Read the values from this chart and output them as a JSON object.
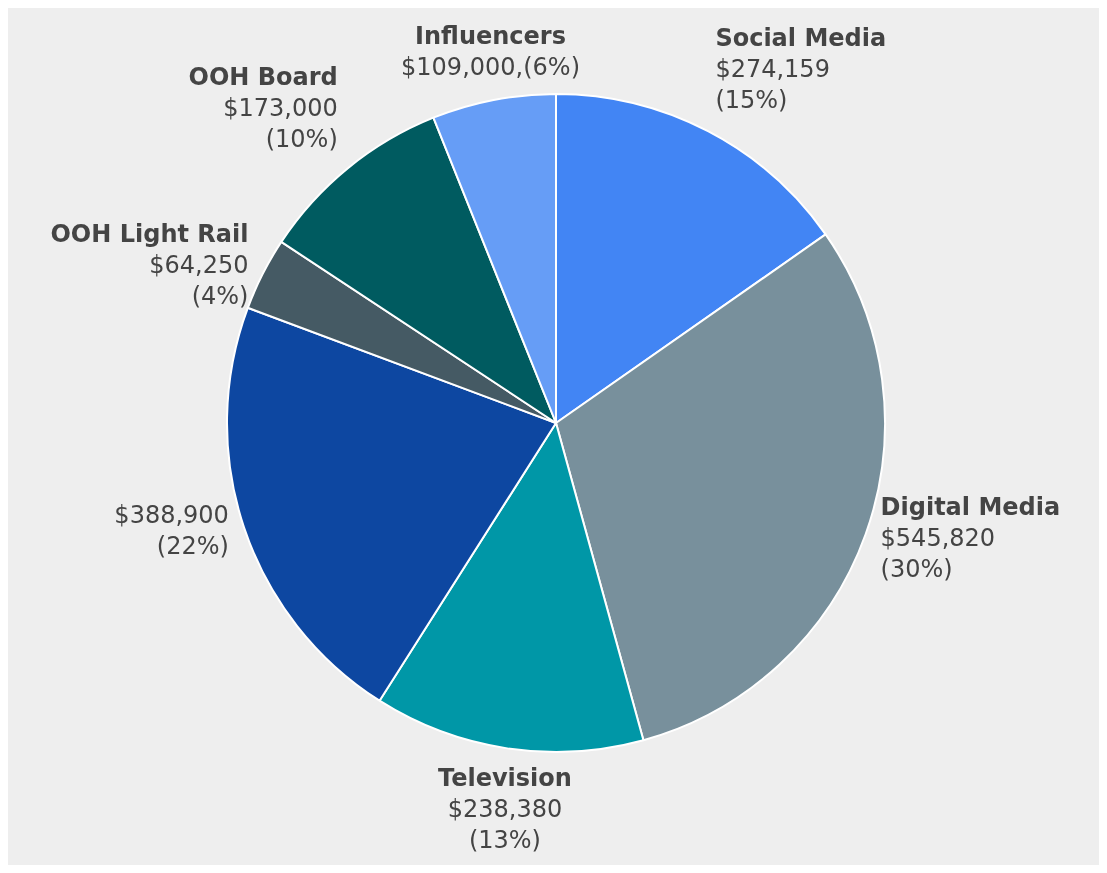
{
  "chart_data": {
    "type": "pie",
    "categories": [
      "Social Media",
      "Digital Media",
      "Television",
      null,
      "OOH Light Rail",
      "OOH Board",
      "Influencers"
    ],
    "values": [
      274159,
      545820,
      238380,
      388900,
      64250,
      173000,
      109000
    ],
    "colors": [
      "#4285f4",
      "#78909c",
      "#0097a7",
      "#0d47a1",
      "#455a64",
      "#005b60",
      "#669df6"
    ],
    "value_labels": [
      "$274,159 (15%)",
      "$545,820 (30%)",
      "$238,380 (13%)",
      "$388,900 (22%)",
      "$64,250 (4%)",
      "$173,000 (10%)",
      "$109,000,(6%)"
    ],
    "legend": false
  }
}
